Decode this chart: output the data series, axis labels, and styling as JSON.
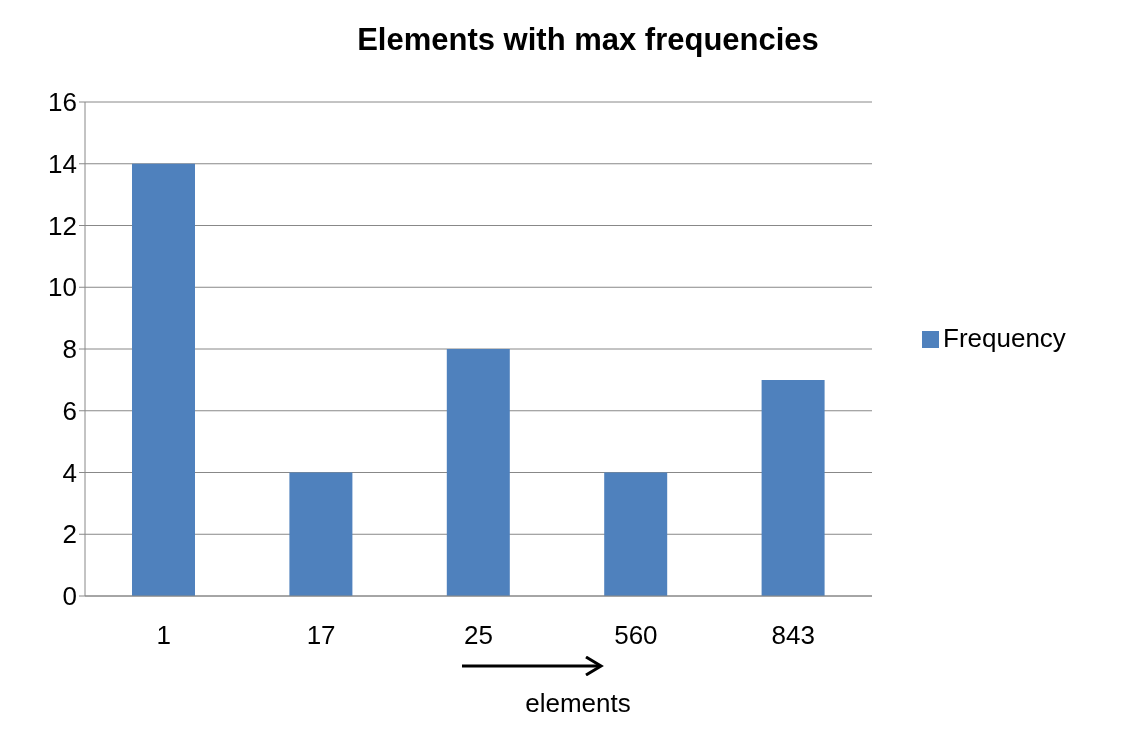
{
  "chart_data": {
    "type": "bar",
    "title": "Elements with max frequencies",
    "xlabel": "elements",
    "categories": [
      "1",
      "17",
      "25",
      "560",
      "843"
    ],
    "series": [
      {
        "name": "Frequency",
        "color": "#4f81bd",
        "values": [
          14,
          4,
          8,
          4,
          7
        ]
      }
    ],
    "ylim": [
      0,
      16
    ],
    "yticks": [
      0,
      2,
      4,
      6,
      8,
      10,
      12,
      14,
      16
    ],
    "grid": "y",
    "legend": "right"
  }
}
